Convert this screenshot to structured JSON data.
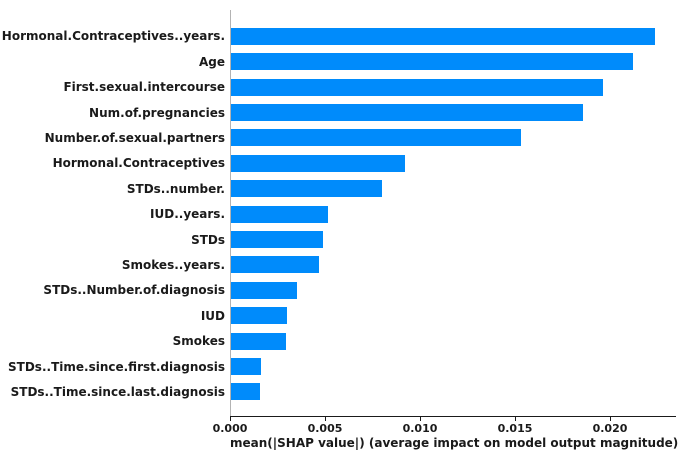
{
  "chart_data": {
    "type": "bar",
    "orientation": "horizontal",
    "title": "",
    "xlabel": "mean(|SHAP value|) (average impact on model output magnitude)",
    "ylabel": "",
    "categories": [
      "Hormonal.Contraceptives..years.",
      "Age",
      "First.sexual.intercourse",
      "Num.of.pregnancies",
      "Number.of.sexual.partners",
      "Hormonal.Contraceptives",
      "STDs..number.",
      "IUD..years.",
      "STDs",
      "Smokes..years.",
      "STDs..Number.of.diagnosis",
      "IUD",
      "Smokes",
      "STDs..Time.since.first.diagnosis",
      "STDs..Time.since.last.diagnosis"
    ],
    "values": [
      0.02232,
      0.02114,
      0.01958,
      0.01851,
      0.01526,
      0.00916,
      0.00795,
      0.00511,
      0.00484,
      0.00463,
      0.00347,
      0.00293,
      0.00289,
      0.00156,
      0.00153
    ],
    "xlim": [
      0,
      0.023474
    ],
    "xticks": [
      0.0,
      0.005,
      0.01,
      0.015,
      0.02
    ],
    "xtick_labels": [
      "0.000",
      "0.005",
      "0.010",
      "0.015",
      "0.020"
    ],
    "grid": false,
    "legend": null,
    "bar_color": "#008bfb"
  },
  "colors": {
    "bar": "#008bfb",
    "axis_line": "#1a1a1a",
    "left_spine": "#b3b3b3",
    "text": "#1a1a1a",
    "background": "#ffffff"
  }
}
